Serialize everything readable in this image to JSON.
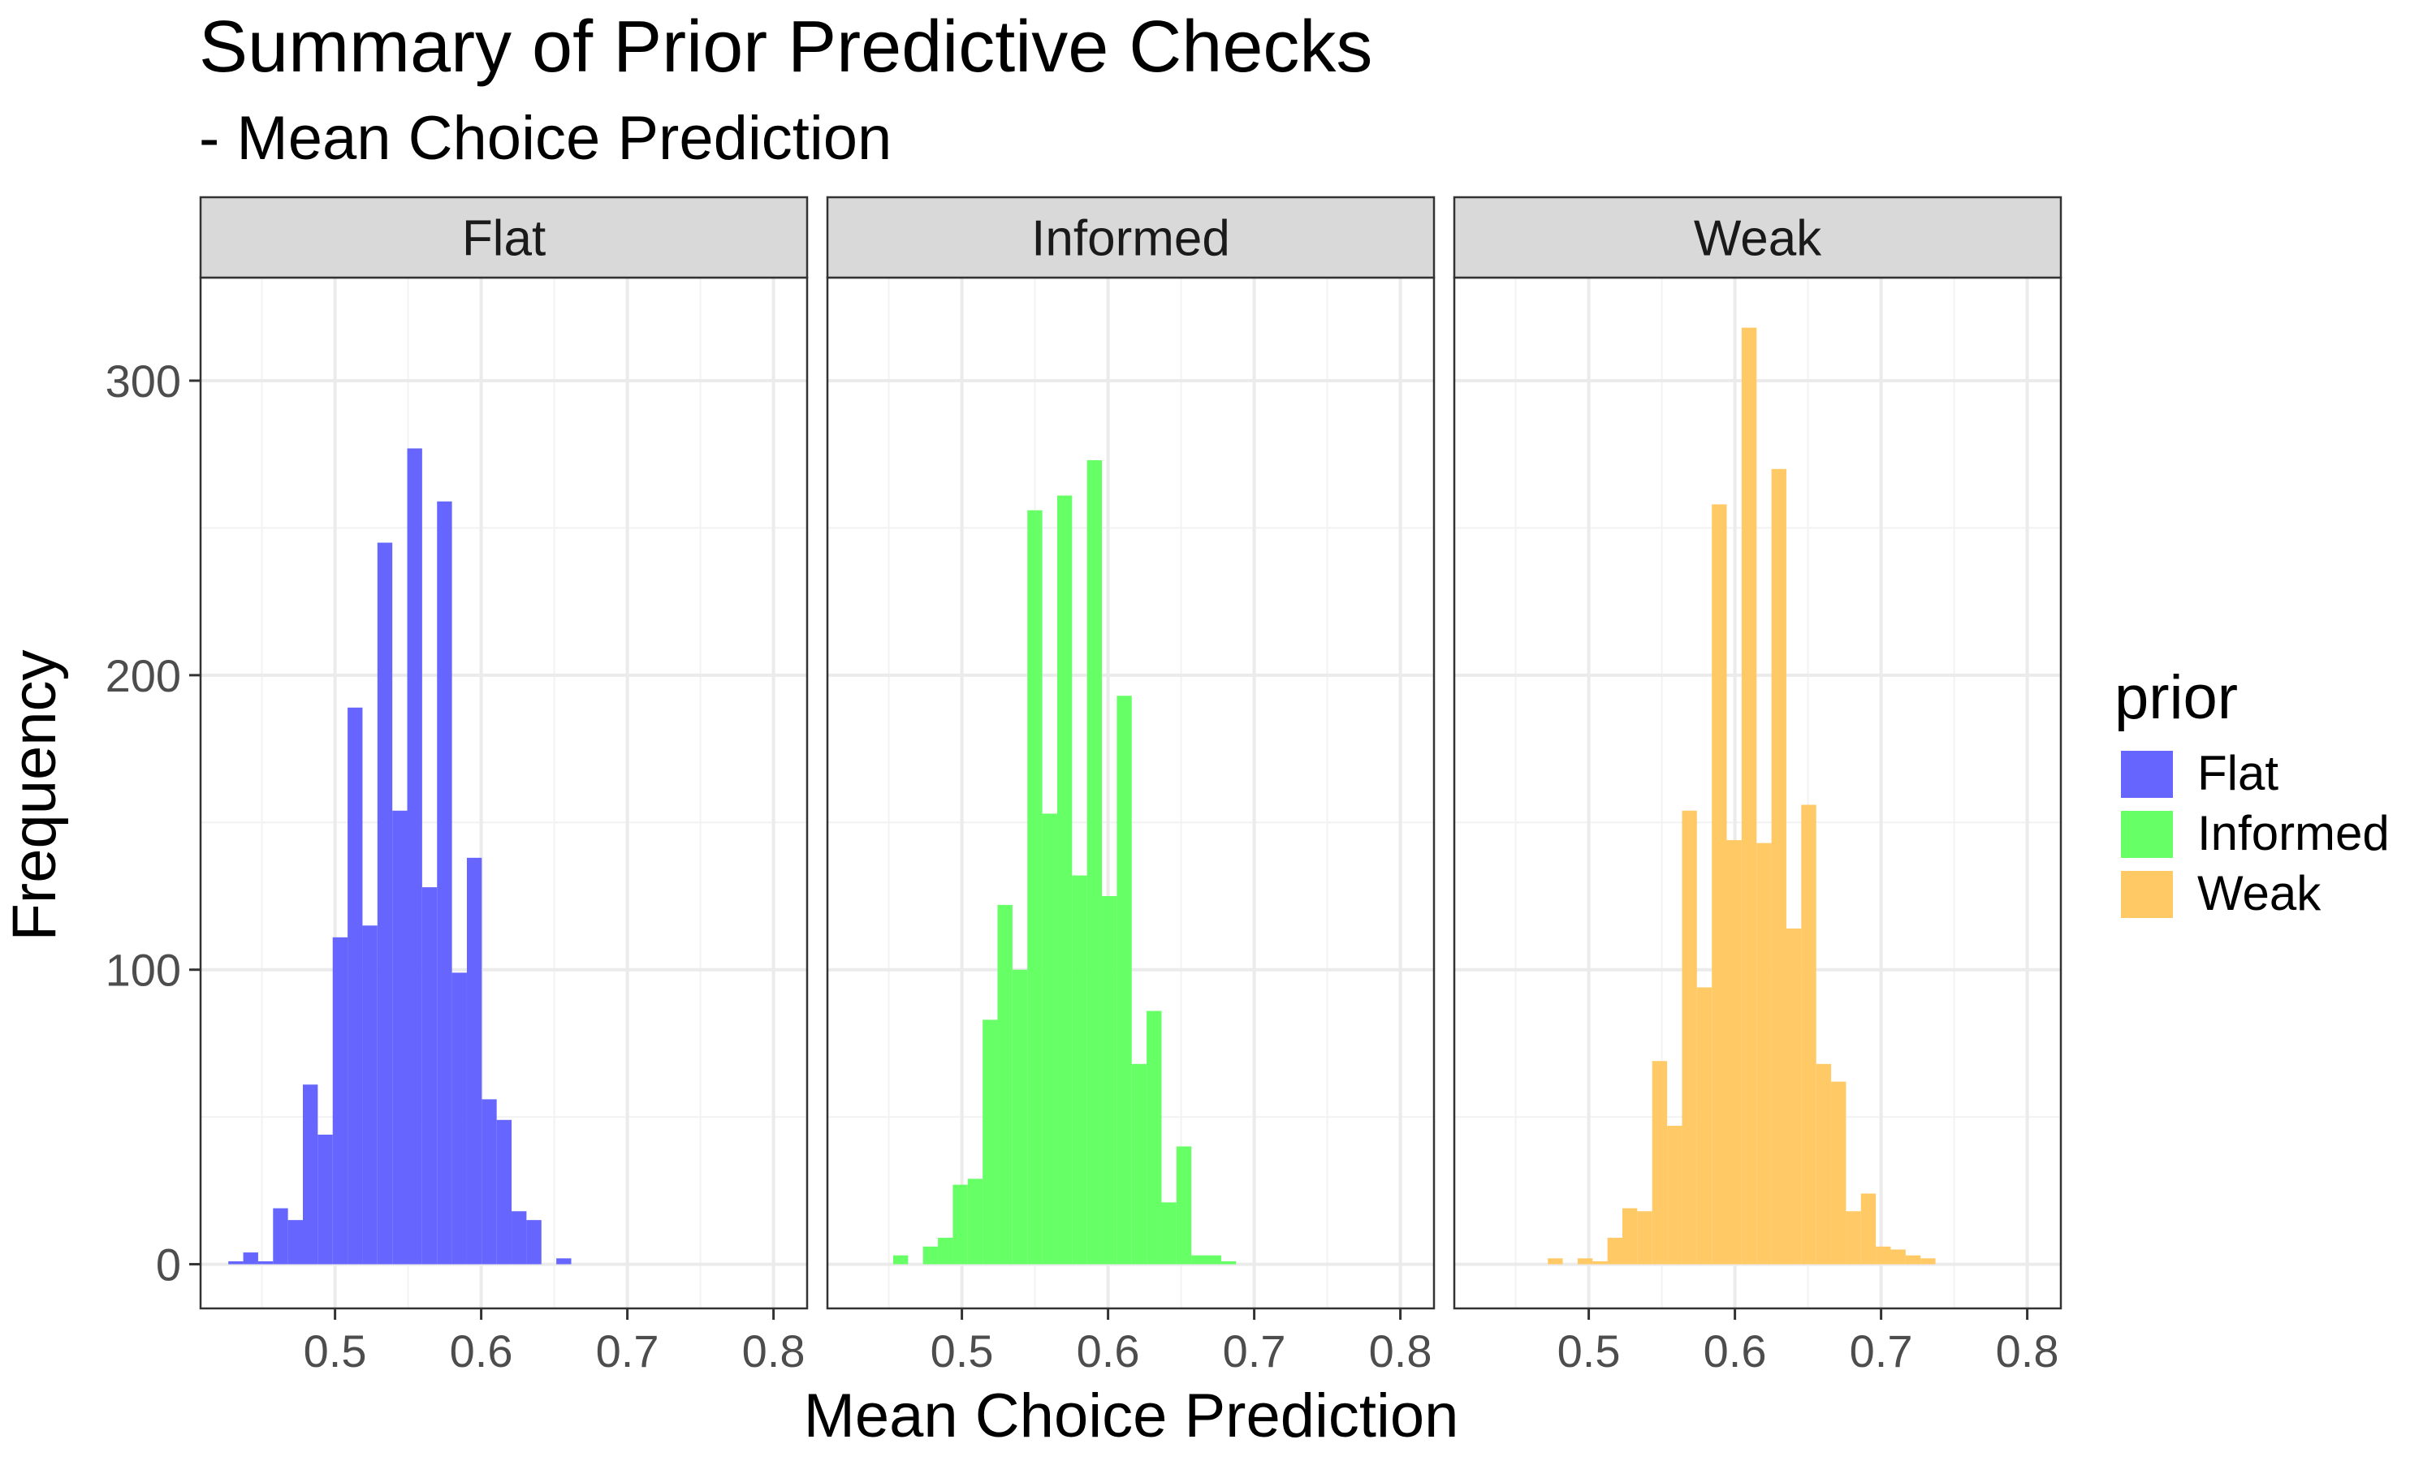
{
  "chart_data": {
    "type": "bar",
    "title": "Summary of Prior Predictive Checks",
    "subtitle": "- Mean Choice Prediction",
    "xlabel": "Mean Choice Prediction",
    "ylabel": "Frequency",
    "xlim": [
      0.408,
      0.823
    ],
    "ylim": [
      -15,
      335
    ],
    "x_ticks": [
      0.5,
      0.6,
      0.7,
      0.8
    ],
    "x_tick_labels": [
      "0.5",
      "0.6",
      "0.7",
      "0.8"
    ],
    "y_ticks": [
      0,
      100,
      200,
      300
    ],
    "y_tick_labels": [
      "0",
      "100",
      "200",
      "300"
    ],
    "grid": true,
    "bin_width": 0.0102,
    "legend": {
      "title": "prior",
      "placement": "right",
      "items": [
        {
          "label": "Flat",
          "color": "#6666FF"
        },
        {
          "label": "Informed",
          "color": "#66FF66"
        },
        {
          "label": "Weak",
          "color": "#FFC966"
        }
      ]
    },
    "panels": [
      {
        "label": "Flat",
        "color": "#6666FF",
        "bin_start": 0.427,
        "values": [
          1,
          4,
          1,
          19,
          15,
          61,
          44,
          111,
          189,
          115,
          245,
          154,
          277,
          128,
          259,
          99,
          138,
          56,
          49,
          18,
          15,
          0,
          2
        ]
      },
      {
        "label": "Informed",
        "color": "#66FF66",
        "bin_start": 0.453,
        "values": [
          3,
          0,
          6,
          9,
          27,
          29,
          83,
          122,
          100,
          256,
          153,
          261,
          132,
          273,
          125,
          193,
          68,
          86,
          21,
          40,
          3,
          3,
          1
        ]
      },
      {
        "label": "Weak",
        "color": "#FFC966",
        "bin_start": 0.472,
        "values": [
          2,
          0,
          2,
          1,
          9,
          19,
          18,
          69,
          47,
          154,
          94,
          258,
          144,
          318,
          143,
          270,
          114,
          156,
          68,
          62,
          18,
          24,
          6,
          5,
          3,
          2
        ]
      }
    ]
  }
}
